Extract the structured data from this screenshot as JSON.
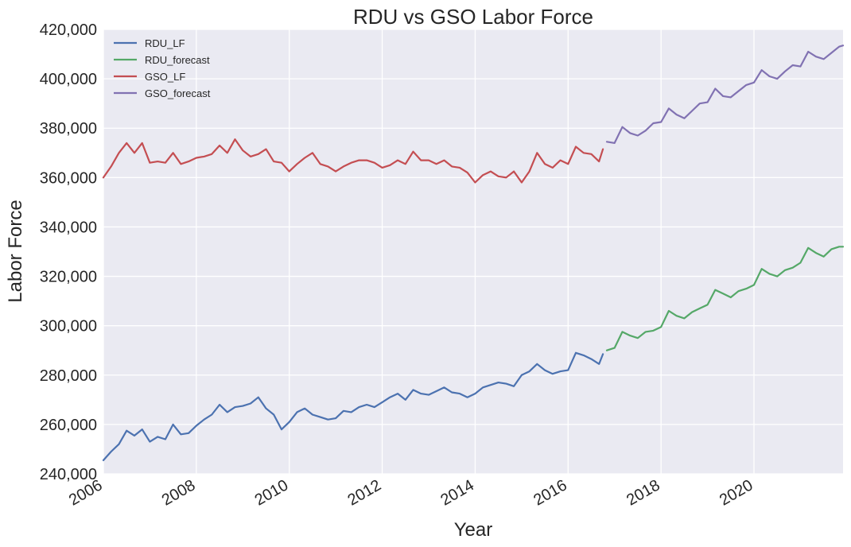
{
  "chart_data": {
    "type": "line",
    "title": "RDU vs GSO Labor Force",
    "xlabel": "Year",
    "ylabel": "Labor Force",
    "xlim": [
      "2006-01",
      "2021-12"
    ],
    "ylim": [
      240000,
      420000
    ],
    "x_ticks": [
      "2006",
      "2008",
      "2010",
      "2012",
      "2014",
      "2016",
      "2018",
      "2020"
    ],
    "y_ticks": [
      "240,000",
      "260,000",
      "280,000",
      "300,000",
      "320,000",
      "340,000",
      "360,000",
      "380,000",
      "400,000",
      "420,000"
    ],
    "grid": true,
    "legend_position": "top-left",
    "series": [
      {
        "name": "RDU_LF",
        "color": "#4c72b0",
        "points": [
          [
            "2006-01",
            245500
          ],
          [
            "2006-03",
            249000
          ],
          [
            "2006-05",
            252000
          ],
          [
            "2006-07",
            257500
          ],
          [
            "2006-09",
            255500
          ],
          [
            "2006-11",
            258000
          ],
          [
            "2007-01",
            253000
          ],
          [
            "2007-03",
            255000
          ],
          [
            "2007-05",
            254000
          ],
          [
            "2007-07",
            260000
          ],
          [
            "2007-09",
            256000
          ],
          [
            "2007-11",
            256500
          ],
          [
            "2008-01",
            259500
          ],
          [
            "2008-03",
            262000
          ],
          [
            "2008-05",
            264000
          ],
          [
            "2008-07",
            268000
          ],
          [
            "2008-09",
            265000
          ],
          [
            "2008-11",
            267000
          ],
          [
            "2009-01",
            267500
          ],
          [
            "2009-03",
            268500
          ],
          [
            "2009-05",
            271000
          ],
          [
            "2009-07",
            266500
          ],
          [
            "2009-09",
            264000
          ],
          [
            "2009-11",
            258000
          ],
          [
            "2010-01",
            261000
          ],
          [
            "2010-03",
            265000
          ],
          [
            "2010-05",
            266500
          ],
          [
            "2010-07",
            264000
          ],
          [
            "2010-09",
            263000
          ],
          [
            "2010-11",
            262000
          ],
          [
            "2011-01",
            262500
          ],
          [
            "2011-03",
            265500
          ],
          [
            "2011-05",
            265000
          ],
          [
            "2011-07",
            267000
          ],
          [
            "2011-09",
            268000
          ],
          [
            "2011-11",
            267000
          ],
          [
            "2012-01",
            269000
          ],
          [
            "2012-03",
            271000
          ],
          [
            "2012-05",
            272500
          ],
          [
            "2012-07",
            270000
          ],
          [
            "2012-09",
            274000
          ],
          [
            "2012-11",
            272500
          ],
          [
            "2013-01",
            272000
          ],
          [
            "2013-03",
            273500
          ],
          [
            "2013-05",
            275000
          ],
          [
            "2013-07",
            273000
          ],
          [
            "2013-09",
            272500
          ],
          [
            "2013-11",
            271000
          ],
          [
            "2014-01",
            272500
          ],
          [
            "2014-03",
            275000
          ],
          [
            "2014-05",
            276000
          ],
          [
            "2014-07",
            277000
          ],
          [
            "2014-09",
            276500
          ],
          [
            "2014-11",
            275500
          ],
          [
            "2015-01",
            280000
          ],
          [
            "2015-03",
            281500
          ],
          [
            "2015-05",
            284500
          ],
          [
            "2015-07",
            282000
          ],
          [
            "2015-09",
            280500
          ],
          [
            "2015-11",
            281500
          ],
          [
            "2016-01",
            282000
          ],
          [
            "2016-03",
            289000
          ],
          [
            "2016-05",
            288000
          ],
          [
            "2016-07",
            286500
          ],
          [
            "2016-09",
            284500
          ],
          [
            "2016-10",
            288500
          ]
        ]
      },
      {
        "name": "RDU_forecast",
        "color": "#55a868",
        "points": [
          [
            "2016-11",
            290000
          ],
          [
            "2017-01",
            291000
          ],
          [
            "2017-03",
            297500
          ],
          [
            "2017-05",
            296000
          ],
          [
            "2017-07",
            295000
          ],
          [
            "2017-09",
            297500
          ],
          [
            "2017-11",
            298000
          ],
          [
            "2018-01",
            299500
          ],
          [
            "2018-03",
            306000
          ],
          [
            "2018-05",
            304000
          ],
          [
            "2018-07",
            303000
          ],
          [
            "2018-09",
            305500
          ],
          [
            "2018-11",
            307000
          ],
          [
            "2019-01",
            308500
          ],
          [
            "2019-03",
            314500
          ],
          [
            "2019-05",
            313000
          ],
          [
            "2019-07",
            311500
          ],
          [
            "2019-09",
            314000
          ],
          [
            "2019-11",
            315000
          ],
          [
            "2020-01",
            316500
          ],
          [
            "2020-03",
            323000
          ],
          [
            "2020-05",
            321000
          ],
          [
            "2020-07",
            320000
          ],
          [
            "2020-09",
            322500
          ],
          [
            "2020-11",
            323500
          ],
          [
            "2021-01",
            325500
          ],
          [
            "2021-03",
            331500
          ],
          [
            "2021-05",
            329500
          ],
          [
            "2021-07",
            328000
          ],
          [
            "2021-09",
            331000
          ],
          [
            "2021-11",
            332000
          ],
          [
            "2021-12",
            332000
          ]
        ]
      },
      {
        "name": "GSO_LF",
        "color": "#c44e52",
        "points": [
          [
            "2006-01",
            360000
          ],
          [
            "2006-03",
            364500
          ],
          [
            "2006-05",
            370000
          ],
          [
            "2006-07",
            374000
          ],
          [
            "2006-09",
            370000
          ],
          [
            "2006-11",
            374000
          ],
          [
            "2007-01",
            366000
          ],
          [
            "2007-03",
            366500
          ],
          [
            "2007-05",
            366000
          ],
          [
            "2007-07",
            370000
          ],
          [
            "2007-09",
            365500
          ],
          [
            "2007-11",
            366500
          ],
          [
            "2008-01",
            368000
          ],
          [
            "2008-03",
            368500
          ],
          [
            "2008-05",
            369500
          ],
          [
            "2008-07",
            373000
          ],
          [
            "2008-09",
            370000
          ],
          [
            "2008-11",
            375500
          ],
          [
            "2009-01",
            371000
          ],
          [
            "2009-03",
            368500
          ],
          [
            "2009-05",
            369500
          ],
          [
            "2009-07",
            371500
          ],
          [
            "2009-09",
            366500
          ],
          [
            "2009-11",
            366000
          ],
          [
            "2010-01",
            362500
          ],
          [
            "2010-03",
            365500
          ],
          [
            "2010-05",
            368000
          ],
          [
            "2010-07",
            370000
          ],
          [
            "2010-09",
            365500
          ],
          [
            "2010-11",
            364500
          ],
          [
            "2011-01",
            362500
          ],
          [
            "2011-03",
            364500
          ],
          [
            "2011-05",
            366000
          ],
          [
            "2011-07",
            367000
          ],
          [
            "2011-09",
            367000
          ],
          [
            "2011-11",
            366000
          ],
          [
            "2012-01",
            364000
          ],
          [
            "2012-03",
            365000
          ],
          [
            "2012-05",
            367000
          ],
          [
            "2012-07",
            365500
          ],
          [
            "2012-09",
            370500
          ],
          [
            "2012-11",
            367000
          ],
          [
            "2013-01",
            367000
          ],
          [
            "2013-03",
            365500
          ],
          [
            "2013-05",
            367000
          ],
          [
            "2013-07",
            364500
          ],
          [
            "2013-09",
            364000
          ],
          [
            "2013-11",
            362000
          ],
          [
            "2014-01",
            358000
          ],
          [
            "2014-03",
            361000
          ],
          [
            "2014-05",
            362500
          ],
          [
            "2014-07",
            360500
          ],
          [
            "2014-09",
            360000
          ],
          [
            "2014-11",
            362500
          ],
          [
            "2015-01",
            358000
          ],
          [
            "2015-03",
            362500
          ],
          [
            "2015-05",
            370000
          ],
          [
            "2015-07",
            365500
          ],
          [
            "2015-09",
            364000
          ],
          [
            "2015-11",
            367000
          ],
          [
            "2016-01",
            365500
          ],
          [
            "2016-03",
            372500
          ],
          [
            "2016-05",
            370000
          ],
          [
            "2016-07",
            369500
          ],
          [
            "2016-09",
            366500
          ],
          [
            "2016-10",
            371500
          ]
        ]
      },
      {
        "name": "GSO_forecast",
        "color": "#8172b2",
        "points": [
          [
            "2016-11",
            374500
          ],
          [
            "2017-01",
            374000
          ],
          [
            "2017-03",
            380500
          ],
          [
            "2017-05",
            378000
          ],
          [
            "2017-07",
            377000
          ],
          [
            "2017-09",
            379000
          ],
          [
            "2017-11",
            382000
          ],
          [
            "2018-01",
            382500
          ],
          [
            "2018-03",
            388000
          ],
          [
            "2018-05",
            385500
          ],
          [
            "2018-07",
            384000
          ],
          [
            "2018-09",
            387000
          ],
          [
            "2018-11",
            390000
          ],
          [
            "2019-01",
            390500
          ],
          [
            "2019-03",
            396000
          ],
          [
            "2019-05",
            393000
          ],
          [
            "2019-07",
            392500
          ],
          [
            "2019-09",
            395000
          ],
          [
            "2019-11",
            397500
          ],
          [
            "2020-01",
            398500
          ],
          [
            "2020-03",
            403500
          ],
          [
            "2020-05",
            401000
          ],
          [
            "2020-07",
            400000
          ],
          [
            "2020-09",
            403000
          ],
          [
            "2020-11",
            405500
          ],
          [
            "2021-01",
            405000
          ],
          [
            "2021-03",
            411000
          ],
          [
            "2021-05",
            409000
          ],
          [
            "2021-07",
            408000
          ],
          [
            "2021-09",
            410500
          ],
          [
            "2021-11",
            413000
          ],
          [
            "2021-12",
            413500
          ]
        ]
      }
    ]
  }
}
